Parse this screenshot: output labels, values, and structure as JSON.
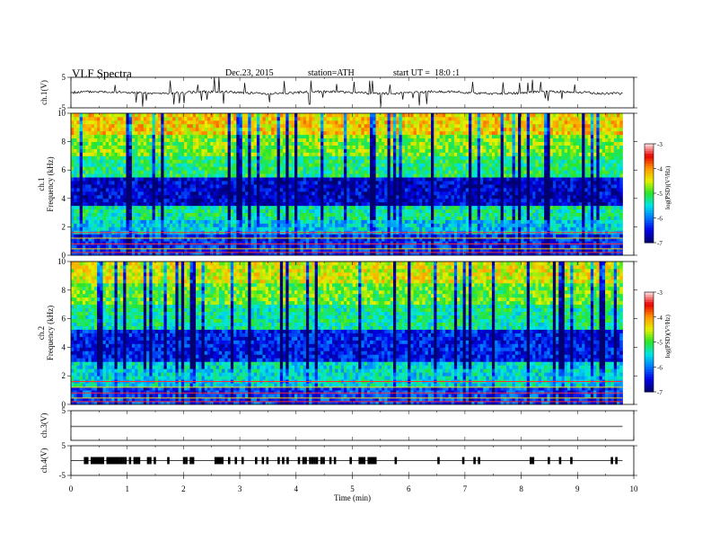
{
  "header": {
    "title": "VLF Spectra",
    "date": "Dec.23, 2015",
    "station": "station=ATH",
    "start": "start UT =  18:0 :1"
  },
  "chart_data": [
    {
      "type": "line",
      "panel": "ch1-waveform",
      "ylabel": "ch.1(V)",
      "ylim": [
        -5,
        5
      ],
      "yticks": [
        "5",
        "-5"
      ],
      "x": [
        0,
        0.5,
        1,
        1.5,
        2,
        2.5,
        3,
        3.5,
        4,
        4.5,
        5,
        5.5,
        6,
        6.5,
        7,
        7.5,
        8,
        8.5,
        9,
        9.5,
        9.8
      ],
      "values": [
        0,
        0.1,
        -0.1,
        0.2,
        0,
        -0.2,
        0.1,
        -0.1,
        0,
        0.2,
        -0.1,
        0,
        0.1,
        -0.2,
        0,
        0.1,
        -0.1,
        0,
        0.2,
        -0.1,
        0
      ],
      "xlim": [
        0,
        10
      ]
    },
    {
      "type": "heatmap",
      "panel": "ch1-spectrogram",
      "ylabel": "ch.1 Frequency (kHz)",
      "ylim": [
        0,
        10
      ],
      "yticks": [
        "0",
        "2",
        "4",
        "6",
        "8",
        "10"
      ],
      "xlim": [
        0,
        10
      ],
      "colorbar": {
        "label": "log(PSD)(V²/Hz)",
        "ticks": [
          "-3",
          "-4",
          "-5",
          "-6",
          "-7"
        ],
        "range": [
          -7,
          -3
        ]
      },
      "bands_khz": [
        {
          "from": 0,
          "to": 1.5,
          "level": -6.3
        },
        {
          "from": 1.5,
          "to": 2.5,
          "level": -5.6
        },
        {
          "from": 2.5,
          "to": 3.5,
          "level": -5.3
        },
        {
          "from": 3.5,
          "to": 5.5,
          "level": -6.6
        },
        {
          "from": 5.5,
          "to": 7,
          "level": -5.2
        },
        {
          "from": 7,
          "to": 8.5,
          "level": -4.8
        },
        {
          "from": 8.5,
          "to": 10,
          "level": -4.3
        }
      ]
    },
    {
      "type": "heatmap",
      "panel": "ch2-spectrogram",
      "ylabel": "ch.2 Frequency (kHz)",
      "ylim": [
        0,
        10
      ],
      "yticks": [
        "0",
        "2",
        "4",
        "6",
        "8",
        "10"
      ],
      "xlim": [
        0,
        10
      ],
      "colorbar": {
        "label": "log(PSD)(V²/Hz)",
        "ticks": [
          "-3",
          "-4",
          "-5",
          "-6",
          "-7"
        ],
        "range": [
          -7,
          -3
        ]
      },
      "bands_khz": [
        {
          "from": 0,
          "to": 1.2,
          "level": -6.2
        },
        {
          "from": 1.2,
          "to": 3,
          "level": -5.5
        },
        {
          "from": 3,
          "to": 5.2,
          "level": -6.4
        },
        {
          "from": 5.2,
          "to": 7,
          "level": -5.3
        },
        {
          "from": 7,
          "to": 8.5,
          "level": -4.9
        },
        {
          "from": 8.5,
          "to": 10,
          "level": -4.5
        }
      ]
    },
    {
      "type": "line",
      "panel": "ch3-waveform",
      "ylabel": "ch.3(V)",
      "ylim": [
        -5,
        5
      ],
      "yticks": [
        "5"
      ],
      "x": [
        0,
        9.8
      ],
      "values": [
        0,
        0
      ],
      "xlim": [
        0,
        10
      ]
    },
    {
      "type": "line",
      "panel": "ch4-waveform",
      "ylabel": "ch.4(V)",
      "ylim": [
        -5,
        5
      ],
      "yticks": [
        "5",
        "-5"
      ],
      "x": [
        0,
        9.8
      ],
      "values": [
        0,
        0
      ],
      "xlim": [
        0,
        10
      ]
    }
  ],
  "xaxis": {
    "label": "Time (min)",
    "ticks": [
      "0",
      "1",
      "2",
      "3",
      "4",
      "5",
      "6",
      "7",
      "8",
      "9",
      "10"
    ],
    "range": [
      0,
      10
    ]
  }
}
